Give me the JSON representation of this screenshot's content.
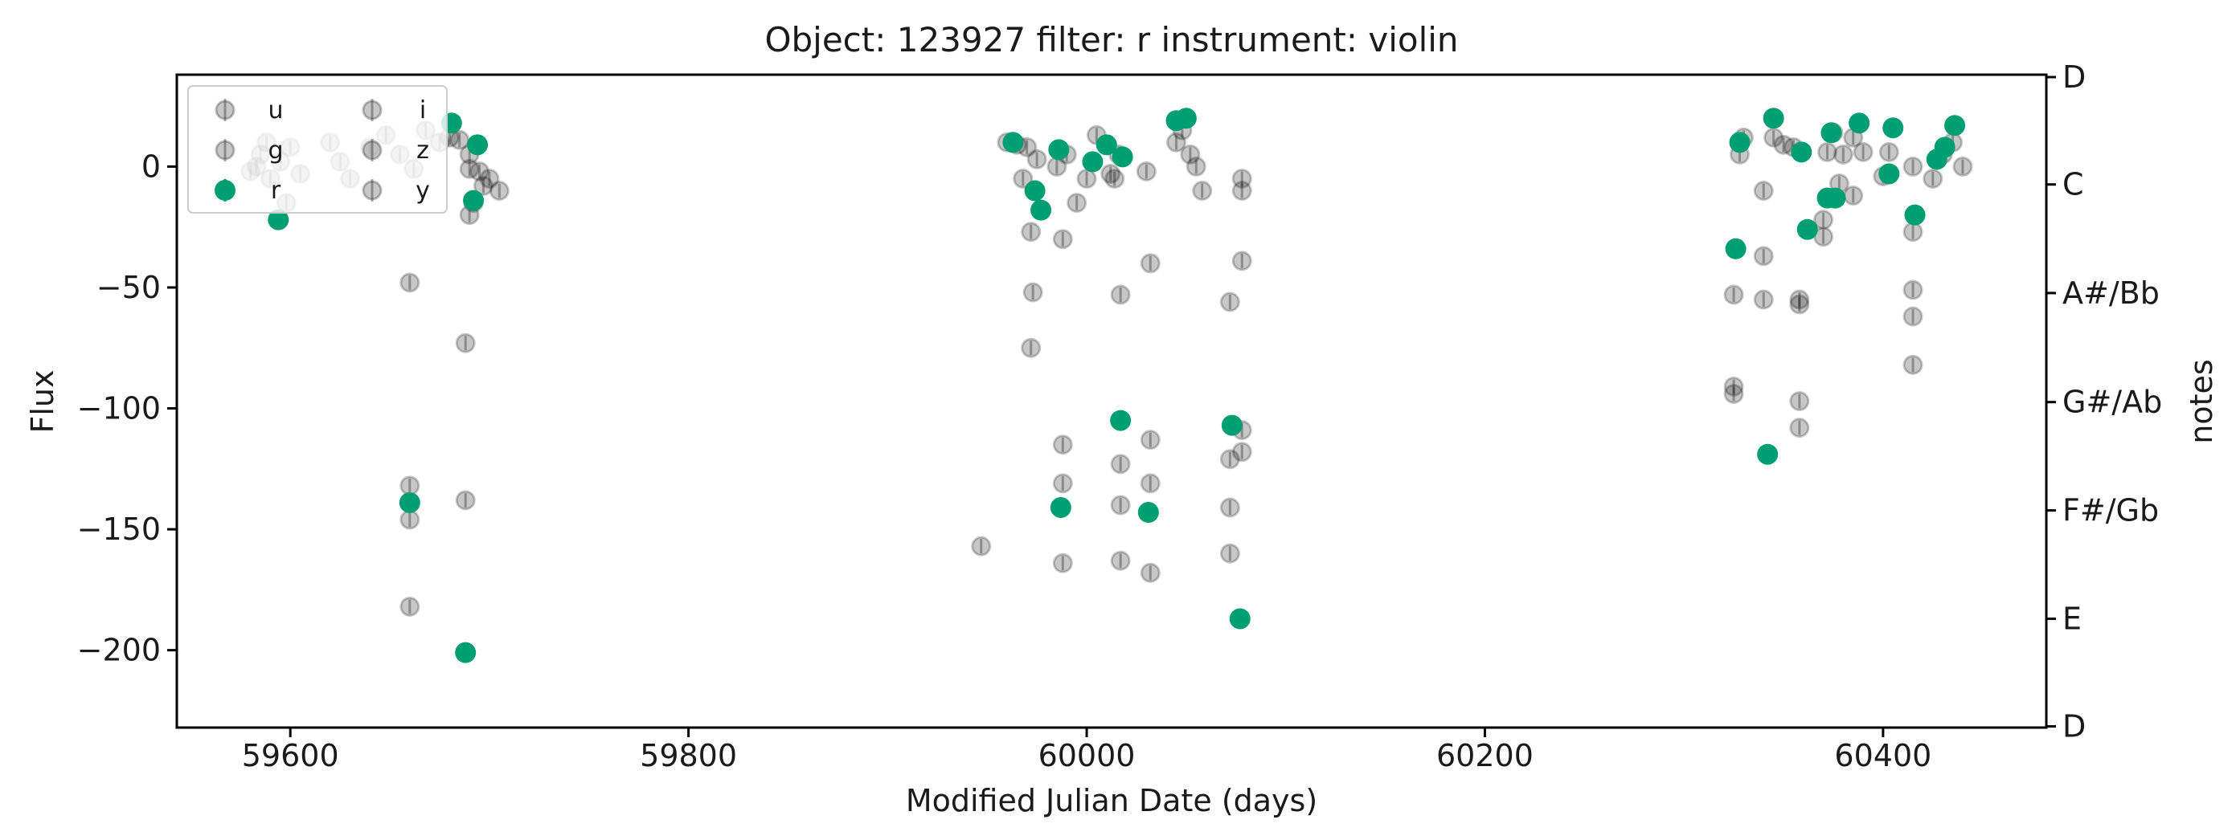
{
  "chart_data": {
    "type": "scatter",
    "title": "Object: 123927 filter: r instrument: violin",
    "xlabel": "Modified Julian Date (days)",
    "ylabel": "Flux",
    "y2label": "notes",
    "xlim": [
      59543,
      60482
    ],
    "ylim": [
      -232,
      38
    ],
    "x_ticks": [
      59600,
      59800,
      60000,
      60200,
      60400
    ],
    "y_ticks": [
      0,
      -50,
      -100,
      -150,
      -200
    ],
    "y2_ticks": [
      {
        "label": "D",
        "value": 37
      },
      {
        "label": "C",
        "value": -7.4
      },
      {
        "label": "A#/Bb",
        "value": -52.3
      },
      {
        "label": "G#/Ab",
        "value": -97.4
      },
      {
        "label": "F#/Gb",
        "value": -142.2
      },
      {
        "label": "E",
        "value": -187.0
      },
      {
        "label": "D",
        "value": -231.5
      }
    ],
    "legend": {
      "placement": "top-left",
      "entries": [
        {
          "label": "u",
          "highlight": false
        },
        {
          "label": "g",
          "highlight": false
        },
        {
          "label": "r",
          "highlight": true
        },
        {
          "label": "i",
          "highlight": false
        },
        {
          "label": "z",
          "highlight": false
        },
        {
          "label": "y",
          "highlight": false
        }
      ]
    },
    "colors": {
      "highlight": "#009e73",
      "other": "#000000",
      "other_opacity": 0.22,
      "axis": "#000000"
    },
    "series": [
      {
        "name": "r",
        "highlight": true,
        "points": [
          [
            59594,
            -22
          ],
          [
            59660,
            -139
          ],
          [
            59681,
            18
          ],
          [
            59688,
            -201
          ],
          [
            59692,
            -14
          ],
          [
            59694,
            9
          ],
          [
            59963,
            10
          ],
          [
            59974,
            -10
          ],
          [
            59986,
            7
          ],
          [
            59987,
            -141
          ],
          [
            59977,
            -18
          ],
          [
            60003,
            2
          ],
          [
            60010,
            9
          ],
          [
            60017,
            -105
          ],
          [
            60018,
            4
          ],
          [
            60031,
            -143
          ],
          [
            60045,
            19
          ],
          [
            60050,
            20
          ],
          [
            60073,
            -107
          ],
          [
            60077,
            -187
          ],
          [
            60326,
            -34
          ],
          [
            60328,
            10
          ],
          [
            60342,
            -119
          ],
          [
            60345,
            20
          ],
          [
            60359,
            6
          ],
          [
            60362,
            -26
          ],
          [
            60372,
            -13
          ],
          [
            60374,
            14
          ],
          [
            60376,
            -13
          ],
          [
            60388,
            18
          ],
          [
            60403,
            -3
          ],
          [
            60405,
            16
          ],
          [
            60416,
            -20
          ],
          [
            60427,
            3
          ],
          [
            60431,
            8
          ],
          [
            60436,
            17
          ]
        ]
      },
      {
        "name": "other",
        "highlight": false,
        "points": [
          [
            59580,
            -2
          ],
          [
            59585,
            5
          ],
          [
            59590,
            -5
          ],
          [
            59595,
            2
          ],
          [
            59588,
            10
          ],
          [
            59600,
            8
          ],
          [
            59605,
            -3
          ],
          [
            59583,
            0
          ],
          [
            59598,
            -15
          ],
          [
            59620,
            10
          ],
          [
            59625,
            2
          ],
          [
            59630,
            -5
          ],
          [
            59640,
            8
          ],
          [
            59648,
            13
          ],
          [
            59655,
            5
          ],
          [
            59662,
            -1
          ],
          [
            59668,
            15
          ],
          [
            59675,
            10
          ],
          [
            59680,
            12
          ],
          [
            59685,
            11
          ],
          [
            59690,
            5
          ],
          [
            59695,
            -2
          ],
          [
            59700,
            -5
          ],
          [
            59705,
            -10
          ],
          [
            59660,
            -48
          ],
          [
            59660,
            -132
          ],
          [
            59660,
            -146
          ],
          [
            59660,
            -182
          ],
          [
            59688,
            -138
          ],
          [
            59688,
            -73
          ],
          [
            59690,
            -20
          ],
          [
            59692,
            -15
          ],
          [
            59697,
            -8
          ],
          [
            59690,
            -1
          ],
          [
            59947,
            -157
          ],
          [
            59960,
            10
          ],
          [
            59965,
            9
          ],
          [
            59970,
            8
          ],
          [
            59968,
            -5
          ],
          [
            59975,
            3
          ],
          [
            59972,
            -27
          ],
          [
            59972,
            -75
          ],
          [
            59973,
            -52
          ],
          [
            59985,
            0
          ],
          [
            59990,
            5
          ],
          [
            59995,
            -15
          ],
          [
            59988,
            -30
          ],
          [
            59988,
            -115
          ],
          [
            59988,
            -131
          ],
          [
            59988,
            -164
          ],
          [
            60000,
            -5
          ],
          [
            60005,
            13
          ],
          [
            60012,
            -3
          ],
          [
            60014,
            -5
          ],
          [
            60016,
            5
          ],
          [
            60017,
            -53
          ],
          [
            60017,
            -123
          ],
          [
            60017,
            -140
          ],
          [
            60017,
            -163
          ],
          [
            60030,
            -2
          ],
          [
            60032,
            -40
          ],
          [
            60032,
            -113
          ],
          [
            60032,
            -131
          ],
          [
            60032,
            -168
          ],
          [
            60045,
            10
          ],
          [
            60048,
            15
          ],
          [
            60052,
            5
          ],
          [
            60055,
            0
          ],
          [
            60058,
            -10
          ],
          [
            60072,
            -56
          ],
          [
            60072,
            -121
          ],
          [
            60072,
            -141
          ],
          [
            60072,
            -160
          ],
          [
            60078,
            -5
          ],
          [
            60078,
            -10
          ],
          [
            60078,
            -39
          ],
          [
            60078,
            -109
          ],
          [
            60078,
            -118
          ],
          [
            60325,
            -53
          ],
          [
            60325,
            -91
          ],
          [
            60325,
            -94
          ],
          [
            60328,
            5
          ],
          [
            60330,
            12
          ],
          [
            60340,
            -10
          ],
          [
            60340,
            -37
          ],
          [
            60340,
            -55
          ],
          [
            60345,
            12
          ],
          [
            60350,
            9
          ],
          [
            60355,
            8
          ],
          [
            60358,
            -55
          ],
          [
            60358,
            -57
          ],
          [
            60358,
            -97
          ],
          [
            60358,
            -108
          ],
          [
            60370,
            -22
          ],
          [
            60370,
            -29
          ],
          [
            60372,
            6
          ],
          [
            60375,
            14
          ],
          [
            60378,
            -7
          ],
          [
            60380,
            5
          ],
          [
            60385,
            12
          ],
          [
            60385,
            -12
          ],
          [
            60390,
            6
          ],
          [
            60400,
            -4
          ],
          [
            60403,
            6
          ],
          [
            60415,
            -27
          ],
          [
            60415,
            -51
          ],
          [
            60415,
            -62
          ],
          [
            60415,
            -82
          ],
          [
            60415,
            0
          ],
          [
            60425,
            -5
          ],
          [
            60430,
            5
          ],
          [
            60435,
            10
          ],
          [
            60440,
            0
          ]
        ]
      }
    ]
  }
}
